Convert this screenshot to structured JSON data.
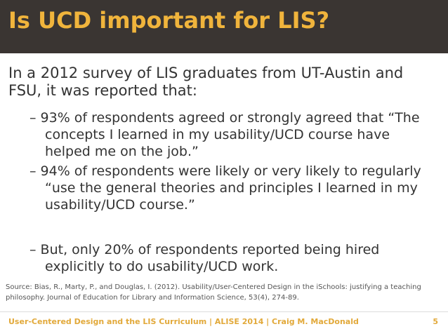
{
  "header": {
    "title": "Is UCD important for LIS?"
  },
  "intro": "In a 2012 survey of LIS graduates from UT-Austin and FSU, it was reported that:",
  "bullets": [
    "– 93% of respondents agreed or strongly agreed that “The concepts I learned in my usability/UCD course have helped me on the job.”",
    "– 94% of respondents were likely or very likely to regularly “use the general theories and principles I learned in my usability/UCD course.”",
    "– But, only 20% of respondents reported being hired explicitly to do usability/UCD work."
  ],
  "source": "Source: Bias, R., Marty, P., and Douglas, I. (2012). Usability/User-Centered Design in the iSchools: justifying a teaching philosophy. Journal of Education for Library and Information Science, 53(4), 274-89.",
  "footer": {
    "text": "User-Centered Design and the LIS Curriculum | ALISE 2014 | Craig M. MacDonald",
    "page": "5"
  }
}
